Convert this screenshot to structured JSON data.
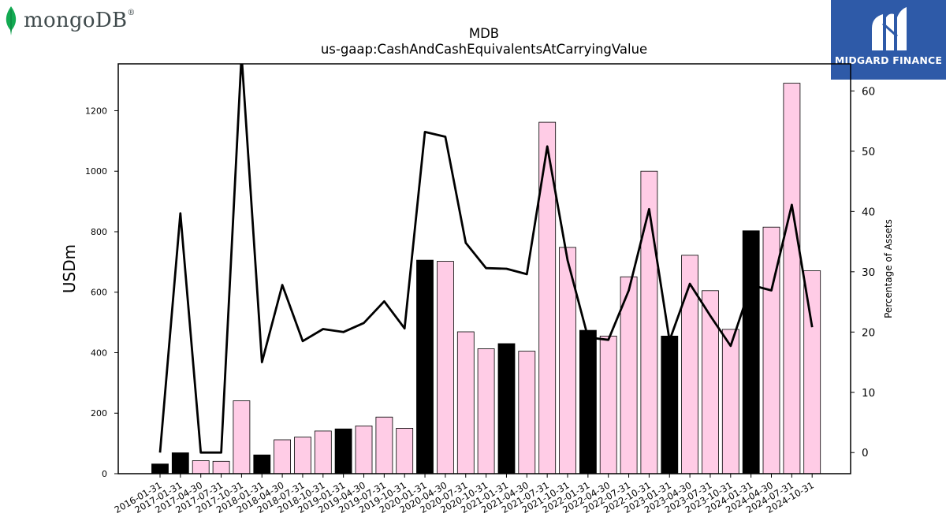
{
  "logos": {
    "left_text": "mongoDB",
    "left_mark": "®",
    "right_text": "MIDGARD FINANCE",
    "left_icon": "mongodb-leaf-icon",
    "right_icon": "midgard-m-icon"
  },
  "chart_data": {
    "type": "bar",
    "title": "MDB",
    "subtitle": "us-gaap:CashAndCashEquivalentsAtCarryingValue",
    "ylabel": "USDm",
    "y2label": "Percentage of Assets",
    "ylim": [
      0,
      1355
    ],
    "y2lim": [
      -3.5,
      64.5
    ],
    "yticks": [
      0,
      200,
      400,
      600,
      800,
      1000,
      1200
    ],
    "y2ticks": [
      0,
      10,
      20,
      30,
      40,
      50,
      60
    ],
    "categories": [
      "2016-01-31",
      "2017-01-31",
      "2017-04-30",
      "2017-07-31",
      "2017-10-31",
      "2018-01-31",
      "2018-04-30",
      "2018-07-31",
      "2018-10-31",
      "2019-01-31",
      "2019-04-30",
      "2019-07-31",
      "2019-10-31",
      "2020-01-31",
      "2020-04-30",
      "2020-07-31",
      "2020-10-31",
      "2021-01-31",
      "2021-04-30",
      "2021-07-31",
      "2021-10-31",
      "2022-01-31",
      "2022-04-30",
      "2022-07-31",
      "2022-10-31",
      "2023-01-31",
      "2023-04-30",
      "2023-07-31",
      "2023-10-31",
      "2024-01-31",
      "2024-04-30",
      "2024-07-31",
      "2024-10-31"
    ],
    "series": [
      {
        "type": "bar",
        "values": [
          32,
          69,
          43,
          41,
          241,
          62,
          112,
          121,
          141,
          148,
          158,
          187,
          150,
          706,
          702,
          469,
          413,
          430,
          405,
          1162,
          748,
          474,
          455,
          651,
          1000,
          455,
          722,
          605,
          477,
          803,
          815,
          1291,
          671
        ],
        "colors": [
          "#000000",
          "#000000",
          "#ffcce6",
          "#ffcce6",
          "#ffcce6",
          "#000000",
          "#ffcce6",
          "#ffcce6",
          "#ffcce6",
          "#000000",
          "#ffcce6",
          "#ffcce6",
          "#ffcce6",
          "#000000",
          "#ffcce6",
          "#ffcce6",
          "#ffcce6",
          "#000000",
          "#ffcce6",
          "#ffcce6",
          "#ffcce6",
          "#000000",
          "#ffcce6",
          "#ffcce6",
          "#ffcce6",
          "#000000",
          "#ffcce6",
          "#ffcce6",
          "#ffcce6",
          "#000000",
          "#ffcce6",
          "#ffcce6",
          "#ffcce6"
        ]
      },
      {
        "type": "line",
        "axis": "right",
        "color": "#000000",
        "values": [
          0,
          39.7,
          0,
          0,
          66,
          15,
          27.8,
          18.5,
          20.5,
          20,
          21.5,
          25.1,
          20.6,
          53.2,
          52.4,
          34.8,
          30.6,
          30.5,
          29.6,
          50.8,
          31.9,
          19.1,
          18.7,
          26.9,
          40.4,
          18.6,
          28,
          22.7,
          17.7,
          27.8,
          26.9,
          41.1,
          20.8
        ]
      }
    ],
    "grid": false,
    "legend": "none"
  }
}
